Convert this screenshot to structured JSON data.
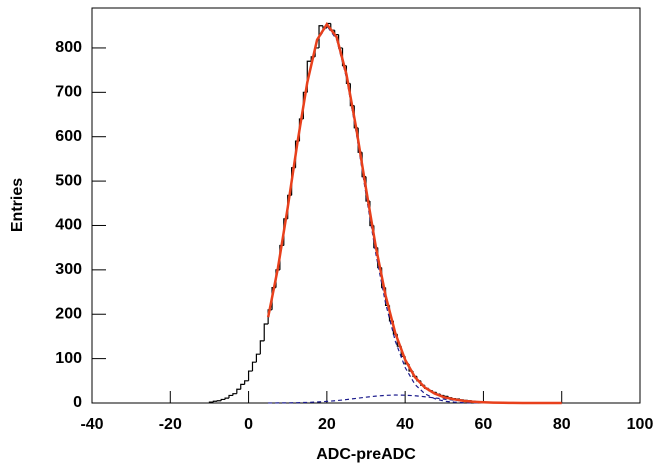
{
  "chart_data": {
    "type": "histogram",
    "xlabel": "ADC-preADC",
    "ylabel": "Entries",
    "bins": [
      -10,
      -9,
      -8,
      -7,
      -6,
      -5,
      -4,
      -3,
      -2,
      -1,
      0,
      1,
      2,
      3,
      4,
      5,
      6,
      7,
      8,
      9,
      10,
      11,
      12,
      13,
      14,
      15,
      16,
      17,
      18,
      19,
      20,
      21,
      22,
      23,
      24,
      25,
      26,
      27,
      28,
      29,
      30,
      31,
      32,
      33,
      34,
      35,
      36,
      37,
      38,
      39,
      40,
      41,
      42,
      43,
      44,
      45,
      46,
      47,
      48,
      49,
      50,
      51,
      52,
      53,
      54,
      55,
      56,
      57,
      58,
      59,
      60,
      61,
      62,
      63,
      64,
      65,
      66
    ],
    "values": [
      2,
      4,
      5,
      8,
      11,
      17,
      21,
      31,
      42,
      50,
      72,
      92,
      110,
      140,
      178,
      210,
      260,
      300,
      355,
      415,
      468,
      530,
      590,
      640,
      700,
      770,
      780,
      800,
      850,
      845,
      855,
      840,
      830,
      800,
      760,
      720,
      670,
      620,
      565,
      510,
      455,
      400,
      350,
      305,
      260,
      220,
      185,
      155,
      128,
      105,
      88,
      72,
      60,
      50,
      40,
      33,
      28,
      24,
      20,
      17,
      15,
      12,
      10,
      9,
      7,
      6,
      5,
      4,
      3,
      3,
      2,
      2,
      1,
      1,
      1,
      1
    ],
    "color": "#000000",
    "curves": [
      {
        "color": "#1a1a8c",
        "style": "dashed",
        "x": [
          5,
          7.5,
          10,
          12.5,
          15,
          17.5,
          20,
          22.5,
          25,
          27.5,
          30,
          32.5,
          35,
          37.5,
          40,
          42.5,
          45,
          47.5,
          50,
          52.5,
          55,
          57.5,
          60
        ],
        "values": [
          193,
          304,
          440,
          587,
          721,
          816,
          850,
          819,
          733,
          609,
          470,
          337,
          225,
          139,
          80,
          42,
          21,
          10,
          4,
          2,
          0.6,
          0.2,
          0.1
        ]
      },
      {
        "color": "#1a1a8c",
        "style": "dashed",
        "x": [
          5,
          7.5,
          10,
          12.5,
          15,
          17.5,
          20,
          22.5,
          25,
          27.5,
          30,
          32.5,
          35,
          37.5,
          40,
          42.5,
          45,
          47.5,
          50,
          52.5,
          55,
          57.5,
          60,
          62.5,
          65,
          67.5,
          70,
          72.5,
          75,
          77.5,
          80
        ],
        "values": [
          0.1,
          0.2,
          0.4,
          0.7,
          1.3,
          2.2,
          3.6,
          5.4,
          7.7,
          10.4,
          13.1,
          15.5,
          17.2,
          18,
          17.6,
          16.3,
          14.1,
          11.5,
          8.8,
          6.3,
          4.3,
          2.7,
          1.6,
          0.9,
          0.5,
          0.2,
          0.1,
          0,
          0,
          0,
          0
        ]
      },
      {
        "color": "#e8401c",
        "style": "solid",
        "x": [
          5,
          7.5,
          10,
          12.5,
          15,
          17.5,
          20,
          22.5,
          25,
          27.5,
          30,
          32.5,
          35,
          37.5,
          40,
          42.5,
          45,
          47.5,
          50,
          52.5,
          55,
          57.5,
          60,
          62.5,
          65,
          67.5,
          70,
          72.5,
          75,
          77.5,
          80
        ],
        "values": [
          193.1,
          304.2,
          440.4,
          587.7,
          722.3,
          818.2,
          853.6,
          824.4,
          740.7,
          619.4,
          483.1,
          352.5,
          242.2,
          157,
          97.6,
          58.3,
          35.1,
          21.5,
          12.8,
          8.3,
          4.9,
          2.9,
          1.7,
          0.9,
          0.5,
          0.2,
          0.1,
          0,
          0,
          0,
          0
        ]
      }
    ],
    "xlim": [
      -40,
      100
    ],
    "xticks": [
      -40,
      -20,
      0,
      20,
      40,
      60,
      80,
      100
    ],
    "ylim": [
      0,
      890
    ],
    "yticks": [
      0,
      100,
      200,
      300,
      400,
      500,
      600,
      700,
      800
    ]
  }
}
